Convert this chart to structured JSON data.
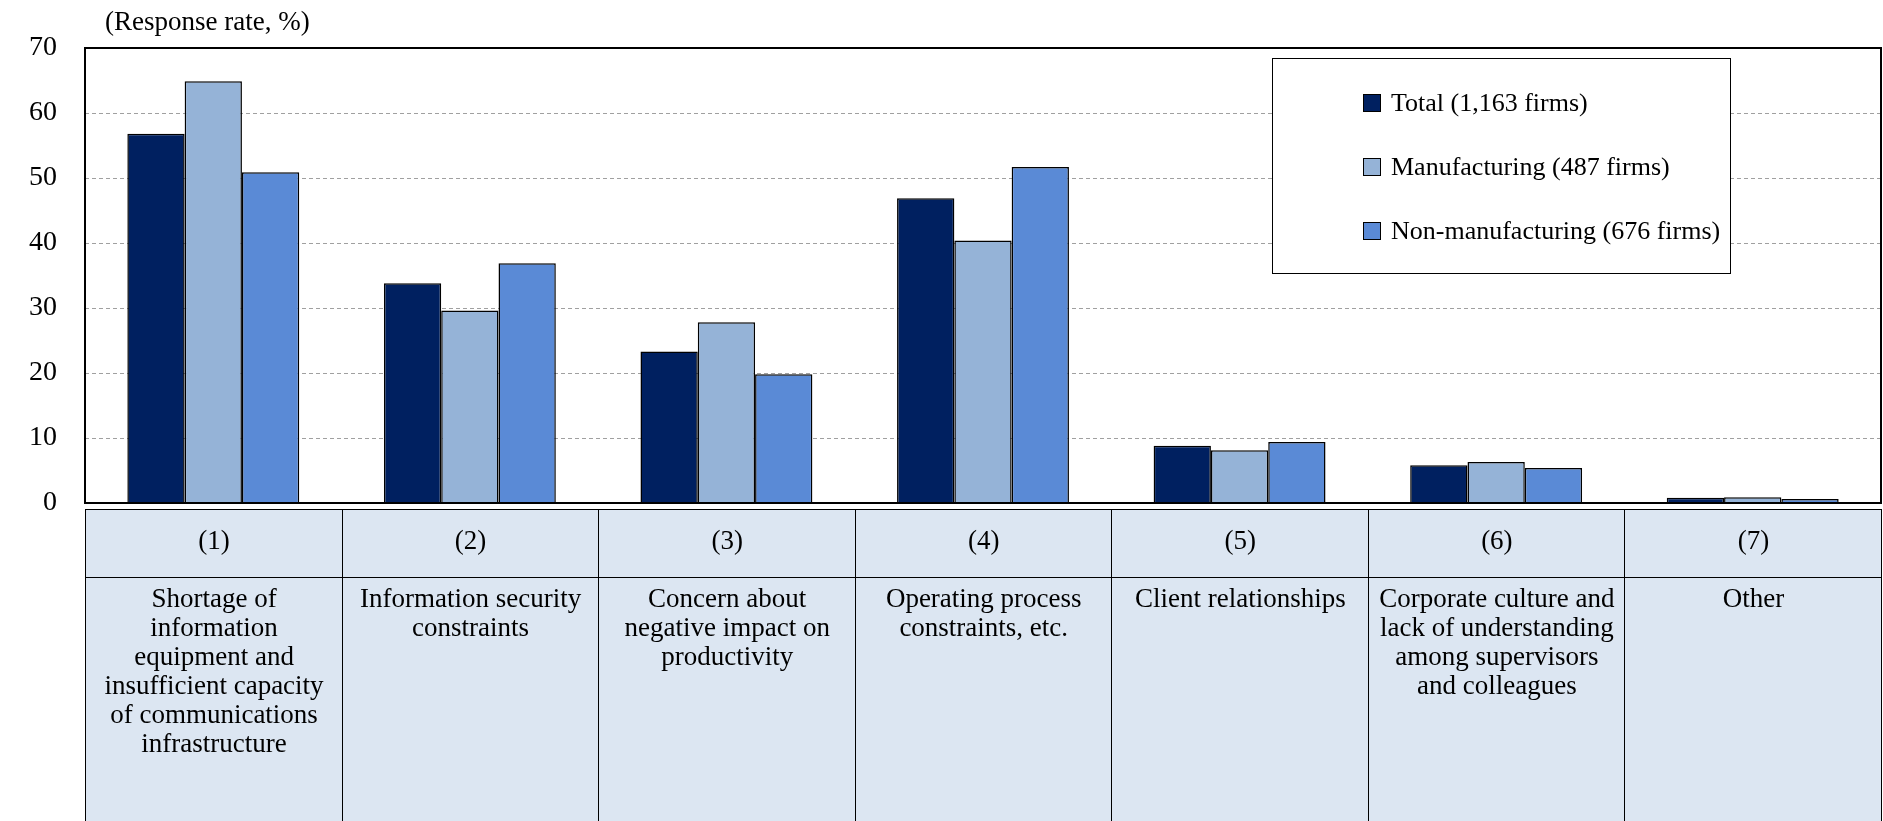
{
  "chart_data": {
    "type": "bar",
    "ylabel": "(Response rate, %)",
    "categories": [
      "(1)\nShortage of information equipment and insufficient capacity of communications infrastructure",
      "(2)\nInformation security constraints",
      "(3)\nConcern about negative impact on productivity",
      "(4)\nOperating process constraints, etc.",
      "(5)\nClient relationships",
      "(6)\nCorporate culture and lack of understanding among supervisors and colleagues",
      "(7)\nOther"
    ],
    "series": [
      {
        "name": "Total (1,163 firms)",
        "color": "#002060",
        "values": [
          56.8,
          33.8,
          23.3,
          46.9,
          8.8,
          5.8,
          0.8
        ]
      },
      {
        "name": "Manufacturing (487 firms)",
        "color": "#95b3d7",
        "values": [
          64.9,
          29.6,
          27.8,
          40.4,
          8.1,
          6.3,
          0.9
        ]
      },
      {
        "name": "Non-manufacturing (676 firms)",
        "color": "#5a8ad6",
        "values": [
          50.9,
          36.9,
          19.8,
          51.7,
          9.4,
          5.4,
          0.6
        ]
      }
    ],
    "ylim": [
      0,
      70
    ],
    "yticks": [
      0,
      10,
      20,
      30,
      40,
      50,
      60,
      70
    ],
    "grid": "y",
    "legend": "top right"
  }
}
